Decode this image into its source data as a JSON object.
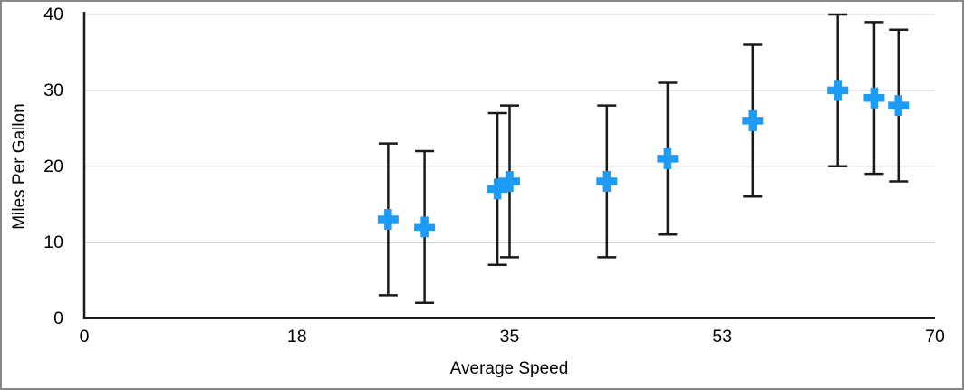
{
  "window": {
    "background": "#ffffff",
    "frame_border_color": "#868686"
  },
  "chart_data": {
    "type": "scatter",
    "title": "",
    "xlabel": "Average Speed",
    "ylabel": "Miles Per Gallon",
    "xlim": [
      0,
      70
    ],
    "ylim": [
      0,
      40
    ],
    "x_tick_labels": [
      "0",
      "18",
      "35",
      "53",
      "70"
    ],
    "y_tick_labels": [
      "0",
      "10",
      "20",
      "30",
      "40"
    ],
    "y_tick_values": [
      0,
      10,
      20,
      30,
      40
    ],
    "grid": "horizontal-only",
    "legend": "none",
    "marker": {
      "shape": "plus",
      "color": "#1e9bf5",
      "size": 23,
      "arm_thickness": 8.5
    },
    "error_bars": {
      "mode": "fixed-value",
      "value": 10,
      "direction": "both",
      "color": "#1a1a1a",
      "cap_width": 21
    },
    "points": [
      {
        "x": 25,
        "y": 13,
        "error": 10
      },
      {
        "x": 28,
        "y": 12,
        "error": 10
      },
      {
        "x": 34,
        "y": 17,
        "error": 10
      },
      {
        "x": 35,
        "y": 18,
        "error": 10
      },
      {
        "x": 43,
        "y": 18,
        "error": 10
      },
      {
        "x": 48,
        "y": 21,
        "error": 10
      },
      {
        "x": 55,
        "y": 26,
        "error": 10
      },
      {
        "x": 62,
        "y": 30,
        "error": 10
      },
      {
        "x": 65,
        "y": 29,
        "error": 10
      },
      {
        "x": 67,
        "y": 28,
        "error": 10
      }
    ],
    "colors": {
      "axis": "#1a1a1a",
      "gridline": "#d9d9d9",
      "tick_text": "#000000"
    }
  }
}
